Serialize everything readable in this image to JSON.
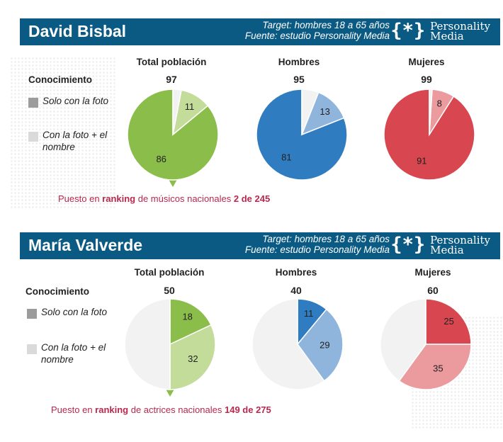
{
  "colors": {
    "header_bg": "#0a5a83",
    "ranking_text": "#b8284e",
    "green_dark": "#8bbd4a",
    "green_light": "#c3dc9a",
    "blue_dark": "#2f7dc0",
    "blue_light": "#8fb5dd",
    "red_dark": "#d8474f",
    "red_light": "#eb9a9e",
    "remainder": "#f2f2f2",
    "legend_dark": "#9c9c9c",
    "legend_light": "#dadada"
  },
  "brand": {
    "icon": "brace-asterisk-icon",
    "line1": "Personality",
    "line2": "Media"
  },
  "panels": [
    {
      "name": "David Bisbal",
      "target_line1": "Target: hombres 18 a 65 años",
      "target_line2": "Fuente: estudio Personality Media",
      "legend": {
        "title": "Conocimiento",
        "item1": "Solo con la foto",
        "item2": "Con la foto + el nombre"
      },
      "ranking": {
        "prefix": "Puesto en ",
        "keyword": "ranking",
        "middle": " de músicos nacionales ",
        "value": "2 de 245"
      }
    },
    {
      "name": "María Valverde",
      "target_line1": "Target: hombres 18 a 65 años",
      "target_line2": "Fuente: estudio Personality Media",
      "legend": {
        "title": "Conocimiento",
        "item1": "Solo con la foto",
        "item2": "Con la foto + el nombre"
      },
      "ranking": {
        "prefix": "Puesto en ",
        "keyword": "ranking",
        "middle": " de actrices nacionales ",
        "value": "149 de 275"
      }
    }
  ],
  "chart_data": [
    {
      "type": "pie",
      "title": "Total población",
      "total": "97",
      "unit": "%",
      "slices": [
        {
          "label": "Con la foto + el nombre",
          "value": 86,
          "color": "#8bbd4a"
        },
        {
          "label": "Solo con la foto",
          "value": 11,
          "color": "#c3dc9a"
        },
        {
          "label": "",
          "value": 3,
          "color": "#f2f2f2"
        }
      ]
    },
    {
      "type": "pie",
      "title": "Hombres",
      "total": "95",
      "unit": "%",
      "slices": [
        {
          "label": "Con la foto + el nombre",
          "value": 81,
          "color": "#2f7dc0"
        },
        {
          "label": "Solo con la foto",
          "value": 13,
          "color": "#8fb5dd"
        },
        {
          "label": "",
          "value": 6,
          "color": "#f2f2f2"
        }
      ]
    },
    {
      "type": "pie",
      "title": "Mujeres",
      "total": "99",
      "unit": "%",
      "slices": [
        {
          "label": "Con la foto + el nombre",
          "value": 91,
          "color": "#d8474f"
        },
        {
          "label": "Solo con la foto",
          "value": 8,
          "color": "#eb9a9e"
        },
        {
          "label": "",
          "value": 1,
          "color": "#f2f2f2"
        }
      ]
    },
    {
      "type": "pie",
      "title": "Total población",
      "total": "50",
      "unit": "%",
      "slices": [
        {
          "label": "Solo con la foto",
          "value": 18,
          "color": "#8bbd4a"
        },
        {
          "label": "Con la foto + el nombre",
          "value": 32,
          "color": "#c3dc9a"
        },
        {
          "label": "",
          "value": 50,
          "color": "#f2f2f2"
        }
      ]
    },
    {
      "type": "pie",
      "title": "Hombres",
      "total": "40",
      "unit": "%",
      "slices": [
        {
          "label": "Solo con la foto",
          "value": 11,
          "color": "#2f7dc0"
        },
        {
          "label": "Con la foto + el nombre",
          "value": 29,
          "color": "#8fb5dd"
        },
        {
          "label": "",
          "value": 60,
          "color": "#f2f2f2"
        }
      ]
    },
    {
      "type": "pie",
      "title": "Mujeres",
      "total": "60",
      "unit": "%",
      "slices": [
        {
          "label": "Solo con la foto",
          "value": 25,
          "color": "#d8474f"
        },
        {
          "label": "Con la foto + el nombre",
          "value": 35,
          "color": "#eb9a9e"
        },
        {
          "label": "",
          "value": 40,
          "color": "#f2f2f2"
        }
      ]
    }
  ]
}
